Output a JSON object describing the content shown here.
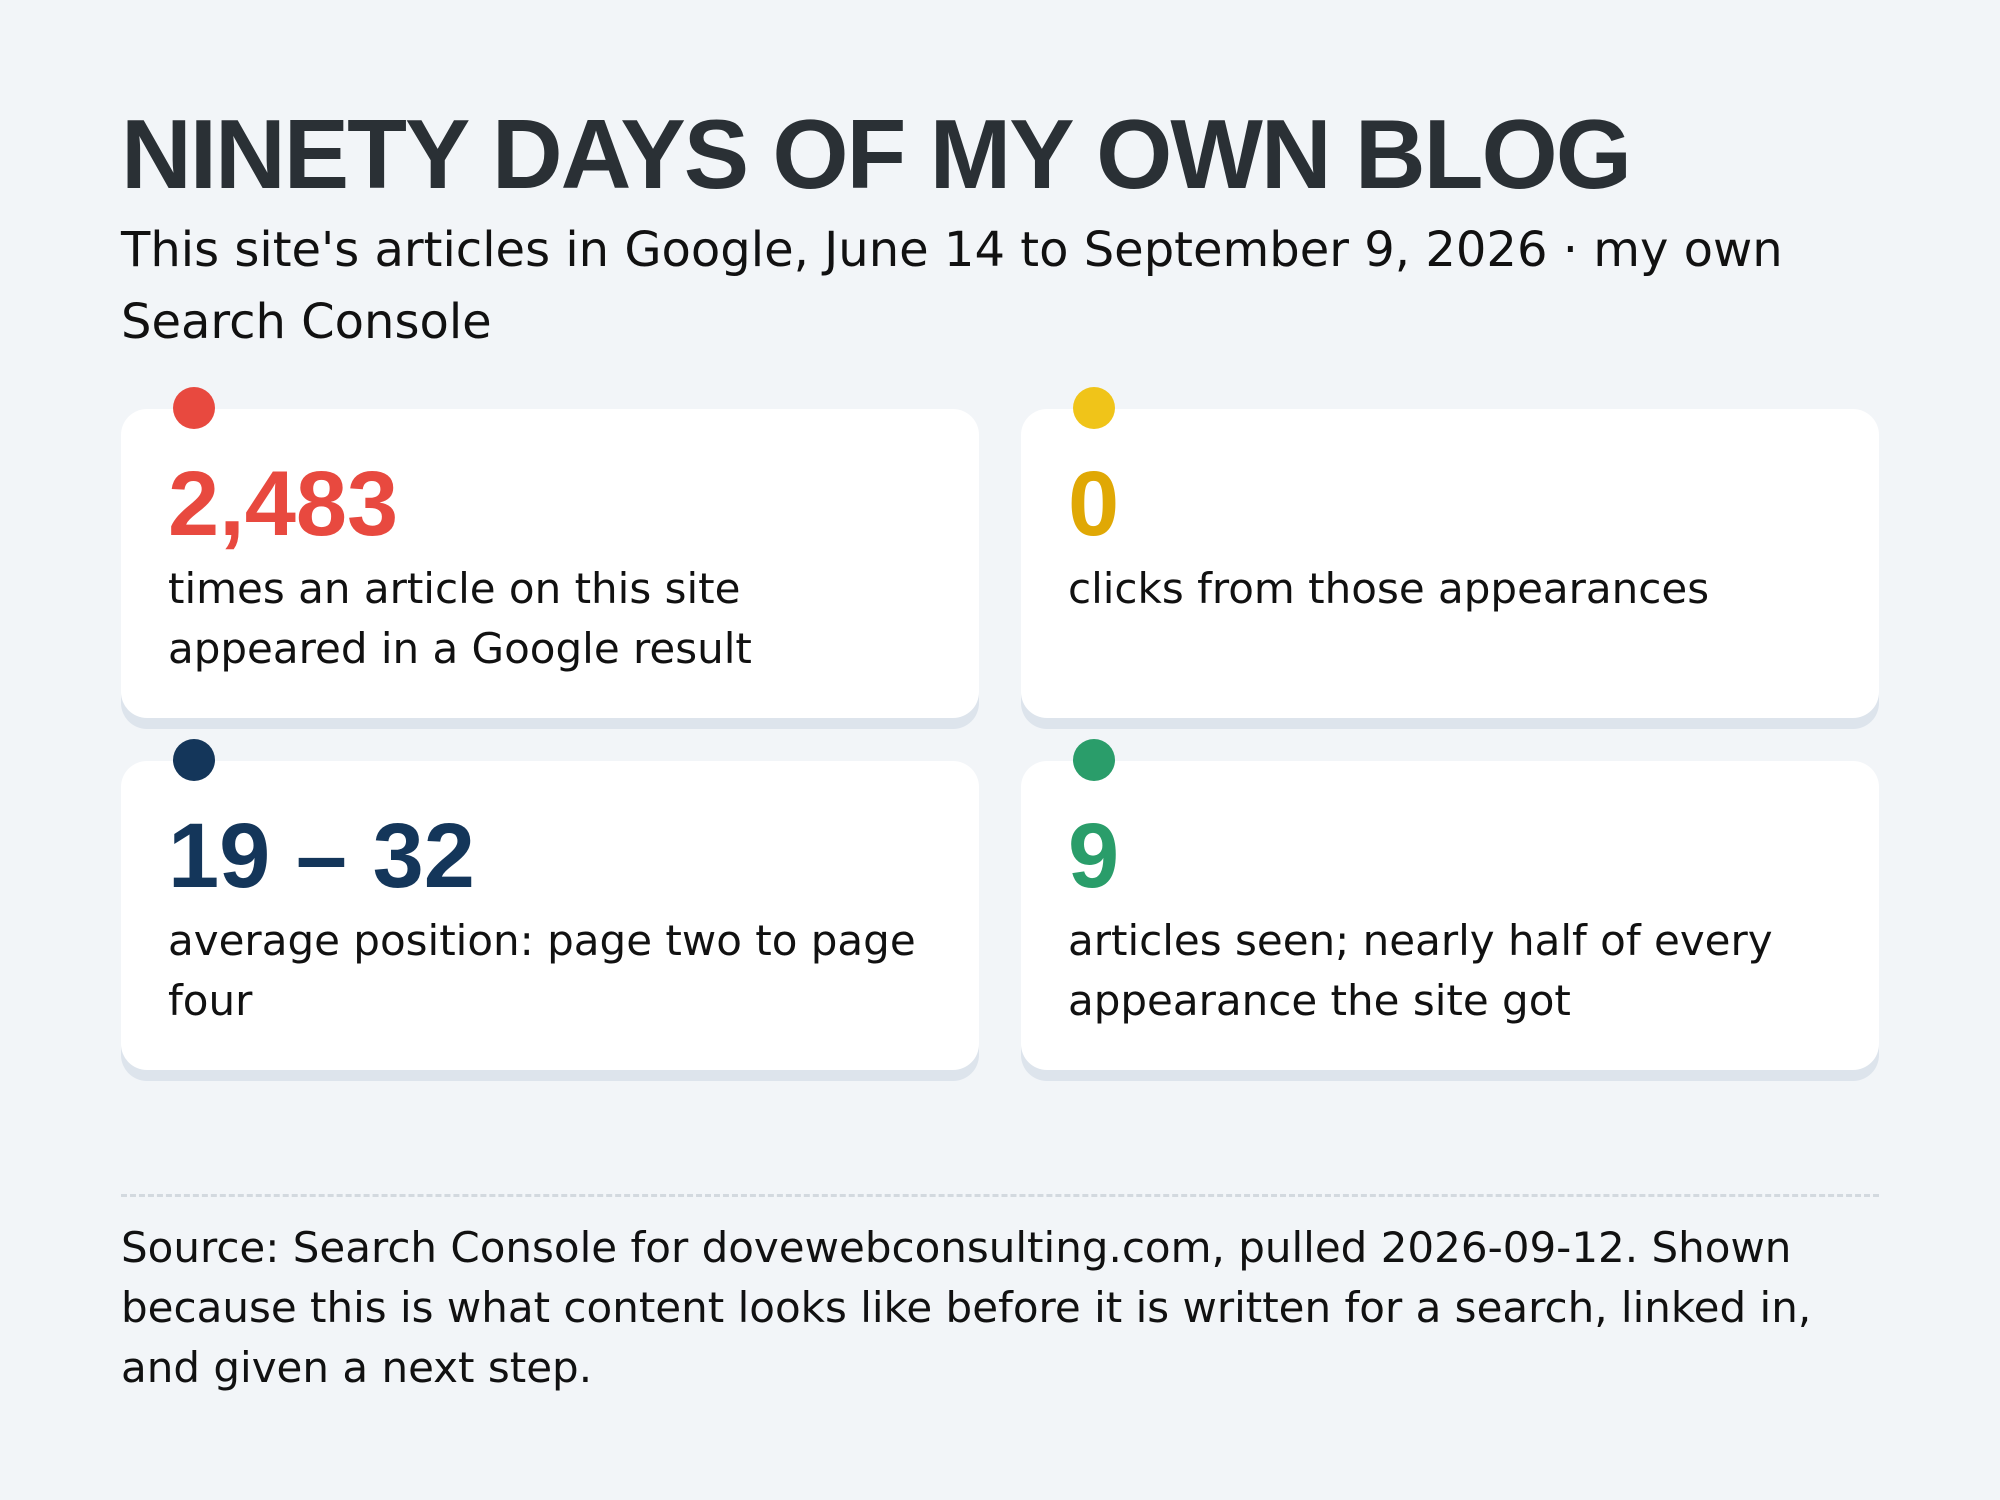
{
  "header": {
    "title": "NINETY DAYS OF MY OWN BLOG",
    "subtitle": "This site's articles in Google, June 14 to September 9, 2026 · my own Search Console"
  },
  "stats": [
    {
      "value": "2,483",
      "description": "times an article on this site appeared in a Google result",
      "color": "#e8493f"
    },
    {
      "value": "0",
      "description": "clicks from those appearances",
      "color": "#e0a805",
      "dot_color": "#f0c419"
    },
    {
      "value": "19 – 32",
      "description": "average position: page two to page four",
      "color": "#14365a"
    },
    {
      "value": "9",
      "description": "articles seen; nearly half of every appearance the site got",
      "color": "#2a9d6a"
    }
  ],
  "footer": {
    "source": "Source: Search Console for dovewebconsulting.com, pulled 2026-09-12. Shown because this is what content looks like before it is written for a search, linked in, and given a next step."
  }
}
